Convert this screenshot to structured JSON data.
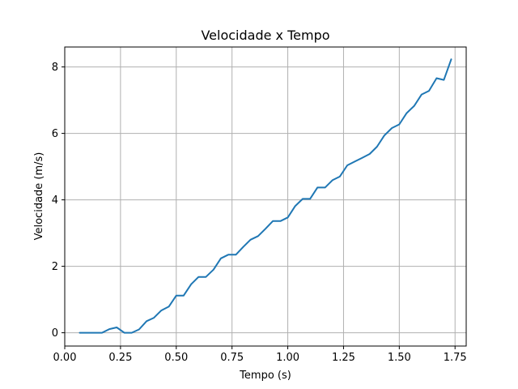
{
  "chart_data": {
    "type": "line",
    "title": "Velocidade x Tempo",
    "xlabel": "Tempo (s)",
    "ylabel": "Velocidade (m/s)",
    "xlim": [
      0.0,
      1.8
    ],
    "ylim": [
      -0.4,
      8.6
    ],
    "xticks": [
      0.0,
      0.25,
      0.5,
      0.75,
      1.0,
      1.25,
      1.5,
      1.75
    ],
    "xtick_labels": [
      "0.00",
      "0.25",
      "0.50",
      "0.75",
      "1.00",
      "1.25",
      "1.50",
      "1.75"
    ],
    "yticks": [
      0,
      2,
      4,
      6,
      8
    ],
    "ytick_labels": [
      "0",
      "2",
      "4",
      "6",
      "8"
    ],
    "grid": true,
    "color": "#1f77b4",
    "series": [
      {
        "x": [
          0.067,
          0.1,
          0.133,
          0.167,
          0.2,
          0.233,
          0.267,
          0.3,
          0.333,
          0.367,
          0.4,
          0.433,
          0.467,
          0.5,
          0.533,
          0.567,
          0.6,
          0.633,
          0.667,
          0.7,
          0.733,
          0.767,
          0.8,
          0.833,
          0.867,
          0.9,
          0.933,
          0.967,
          1.0,
          1.033,
          1.067,
          1.1,
          1.133,
          1.167,
          1.2,
          1.233,
          1.267,
          1.3,
          1.333,
          1.367,
          1.4,
          1.433,
          1.467,
          1.5,
          1.533,
          1.567,
          1.6,
          1.633,
          1.667,
          1.7,
          1.733
        ],
        "values": [
          0.0,
          0.0,
          0.0,
          0.0,
          0.11,
          0.16,
          0.0,
          0.0,
          0.1,
          0.35,
          0.45,
          0.67,
          0.79,
          1.12,
          1.12,
          1.46,
          1.68,
          1.68,
          1.9,
          2.24,
          2.35,
          2.35,
          2.58,
          2.8,
          2.91,
          3.13,
          3.36,
          3.36,
          3.47,
          3.81,
          4.03,
          4.03,
          4.37,
          4.37,
          4.59,
          4.7,
          5.04,
          5.15,
          5.26,
          5.38,
          5.6,
          5.94,
          6.16,
          6.27,
          6.61,
          6.83,
          7.17,
          7.28,
          7.66,
          7.61,
          8.23
        ]
      }
    ]
  }
}
